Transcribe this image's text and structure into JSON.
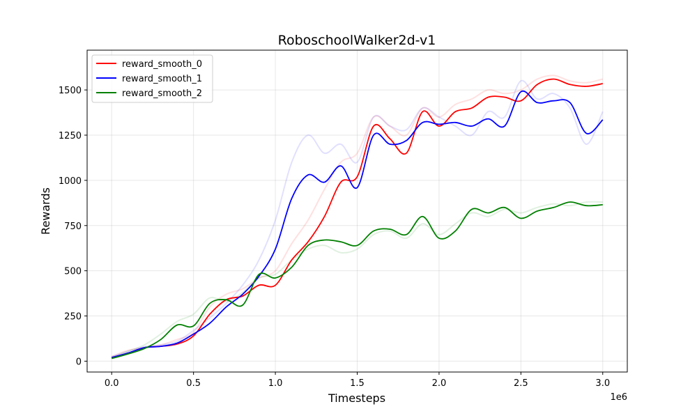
{
  "chart_data": {
    "type": "line",
    "title": "RoboschoolWalker2d-v1",
    "xlabel": "Timesteps",
    "ylabel": "Rewards",
    "x_offset_label": "1e6",
    "xlim": [
      -0.15,
      3.15
    ],
    "ylim": [
      -60,
      1720
    ],
    "x_ticks": [
      0.0,
      0.5,
      1.0,
      1.5,
      2.0,
      2.5,
      3.0
    ],
    "x_tick_labels": [
      "0.0",
      "0.5",
      "1.0",
      "1.5",
      "2.0",
      "2.5",
      "3.0"
    ],
    "y_ticks": [
      0,
      250,
      500,
      750,
      1000,
      1250,
      1500
    ],
    "y_tick_labels": [
      "0",
      "250",
      "500",
      "750",
      "1000",
      "1250",
      "1500"
    ],
    "grid": true,
    "legend_position": "top-left",
    "x": [
      0.0,
      0.1,
      0.2,
      0.3,
      0.4,
      0.5,
      0.6,
      0.7,
      0.8,
      0.9,
      1.0,
      1.1,
      1.2,
      1.3,
      1.4,
      1.5,
      1.6,
      1.7,
      1.8,
      1.9,
      2.0,
      2.1,
      2.2,
      2.3,
      2.4,
      2.5,
      2.6,
      2.7,
      2.8,
      2.9,
      3.0
    ],
    "series": [
      {
        "name": "reward_smooth_0",
        "color": "#ff0000",
        "values": [
          20,
          45,
          75,
          82,
          95,
          140,
          260,
          340,
          360,
          420,
          420,
          560,
          660,
          800,
          990,
          1020,
          1300,
          1230,
          1150,
          1380,
          1300,
          1380,
          1400,
          1460,
          1460,
          1440,
          1530,
          1560,
          1530,
          1520,
          1535
        ],
        "raw": [
          25,
          60,
          75,
          90,
          120,
          160,
          300,
          370,
          400,
          460,
          500,
          650,
          780,
          950,
          1100,
          1150,
          1350,
          1300,
          1250,
          1400,
          1350,
          1420,
          1450,
          1500,
          1480,
          1500,
          1560,
          1580,
          1550,
          1540,
          1560
        ]
      },
      {
        "name": "reward_smooth_1",
        "color": "#0000ff",
        "values": [
          20,
          45,
          75,
          82,
          100,
          150,
          210,
          300,
          370,
          470,
          620,
          900,
          1030,
          990,
          1080,
          960,
          1250,
          1200,
          1220,
          1320,
          1310,
          1320,
          1300,
          1340,
          1300,
          1490,
          1430,
          1440,
          1430,
          1260,
          1335
        ],
        "raw": [
          25,
          55,
          80,
          90,
          110,
          170,
          240,
          320,
          420,
          560,
          780,
          1100,
          1250,
          1150,
          1200,
          1100,
          1350,
          1300,
          1280,
          1400,
          1350,
          1300,
          1250,
          1380,
          1350,
          1550,
          1450,
          1480,
          1400,
          1200,
          1380
        ]
      },
      {
        "name": "reward_smooth_2",
        "color": "#008000",
        "values": [
          15,
          40,
          70,
          120,
          200,
          195,
          320,
          340,
          310,
          480,
          460,
          520,
          640,
          670,
          660,
          640,
          720,
          730,
          700,
          800,
          680,
          720,
          840,
          820,
          850,
          790,
          830,
          850,
          880,
          860,
          865
        ],
        "raw": [
          20,
          55,
          90,
          150,
          220,
          260,
          350,
          330,
          380,
          460,
          480,
          560,
          620,
          640,
          600,
          620,
          700,
          720,
          680,
          760,
          700,
          760,
          820,
          800,
          840,
          820,
          850,
          870,
          860,
          880,
          880
        ]
      }
    ]
  }
}
